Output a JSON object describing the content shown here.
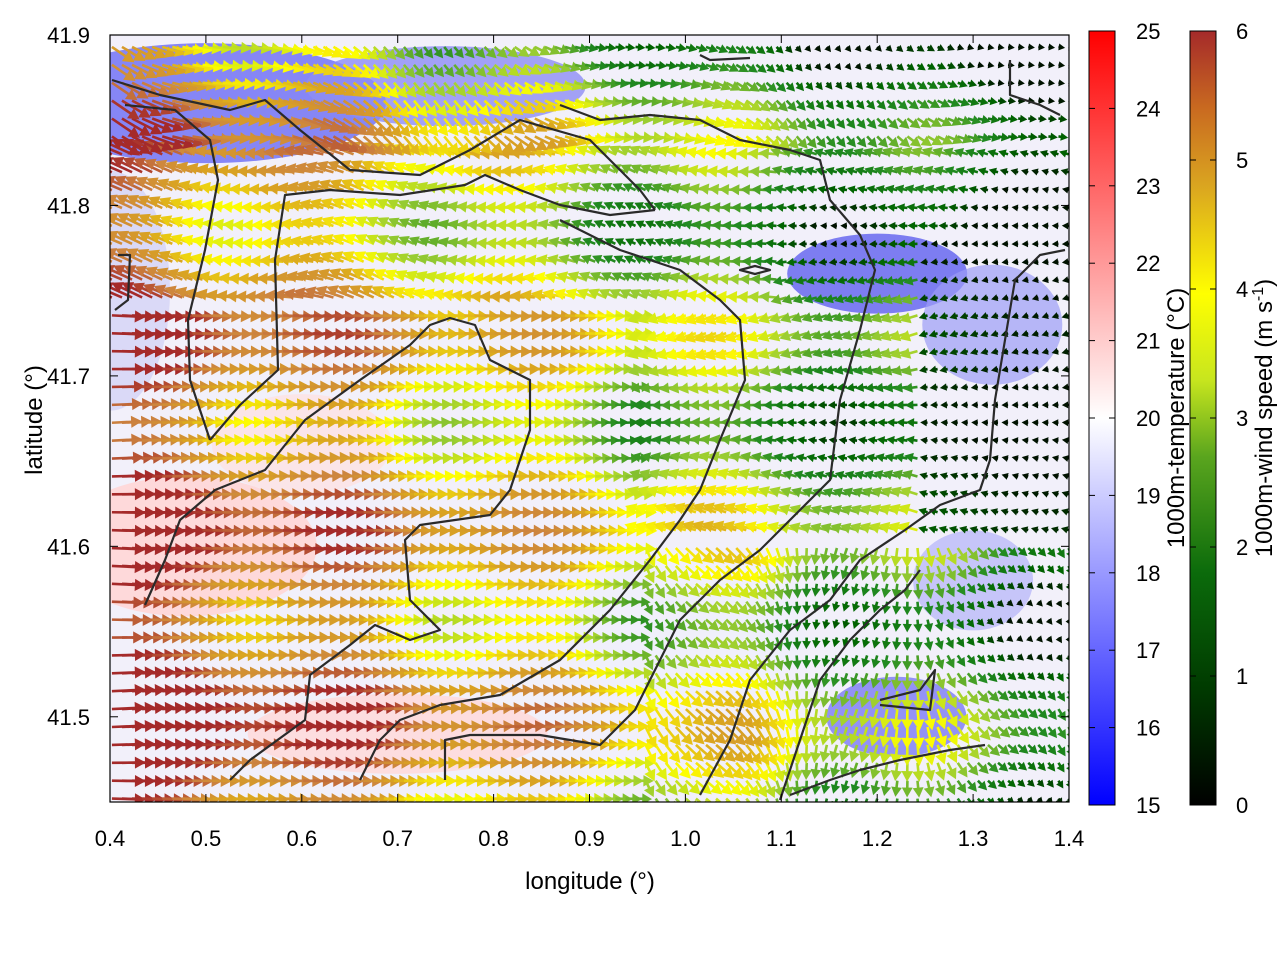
{
  "chart_data": {
    "type": "heatmap",
    "title": "",
    "xlabel": "longitude (°)",
    "ylabel": "latitude (°)",
    "xlim": [
      0.4,
      1.4
    ],
    "ylim": [
      41.45,
      41.9
    ],
    "xticks": [
      "0.4",
      "0.5",
      "0.6",
      "0.7",
      "0.8",
      "0.9",
      "1.0",
      "1.1",
      "1.2",
      "1.3",
      "1.4"
    ],
    "yticks": [
      "41.5",
      "41.6",
      "41.7",
      "41.8",
      "41.9"
    ],
    "xtick_values": [
      0.4,
      0.5,
      0.6,
      0.7,
      0.8,
      0.9,
      1.0,
      1.1,
      1.2,
      1.3,
      1.4
    ],
    "ytick_values": [
      41.5,
      41.6,
      41.7,
      41.8,
      41.9
    ],
    "background_field": {
      "name": "1000m-temperature (°C)",
      "range": [
        15,
        25
      ],
      "colormap": [
        "#0000ff",
        "#ffffff",
        "#ff0000"
      ],
      "cbar_ticks": [
        "15",
        "16",
        "17",
        "18",
        "19",
        "20",
        "21",
        "22",
        "23",
        "24",
        "25"
      ],
      "cbar_values": [
        15,
        16,
        17,
        18,
        19,
        20,
        21,
        22,
        23,
        24,
        25
      ]
    },
    "vector_field": {
      "name": "1000m-wind speed (m s⁻¹)",
      "label_main": "1000m-wind speed (m s",
      "label_sup": "-1",
      "label_end": ")",
      "range": [
        0,
        6
      ],
      "colormap": [
        "#000000",
        "#006400",
        "#228b22",
        "#9acd32",
        "#ffff00",
        "#daa520",
        "#cd853f",
        "#a52a2a"
      ],
      "cbar_ticks": [
        "0",
        "1",
        "2",
        "3",
        "4",
        "5",
        "6"
      ],
      "cbar_values": [
        0,
        1,
        2,
        3,
        4,
        5,
        6
      ]
    },
    "grid": false,
    "legend": "right (two colorbars)"
  }
}
